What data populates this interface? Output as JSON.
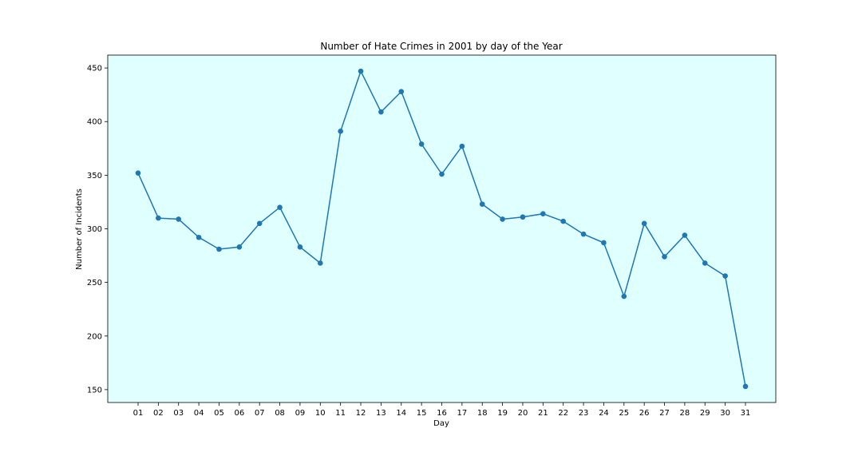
{
  "chart_data": {
    "type": "line",
    "title": "Number of Hate Crimes in 2001 by day of the Year",
    "xlabel": "Day",
    "ylabel": "Number of Incidents",
    "x": [
      "01",
      "02",
      "03",
      "04",
      "05",
      "06",
      "07",
      "08",
      "09",
      "10",
      "11",
      "12",
      "13",
      "14",
      "15",
      "16",
      "17",
      "18",
      "19",
      "20",
      "21",
      "22",
      "23",
      "24",
      "25",
      "26",
      "27",
      "28",
      "29",
      "30",
      "31"
    ],
    "series": [
      {
        "values": [
          352,
          310,
          309,
          292,
          281,
          283,
          305,
          320,
          283,
          268,
          391,
          447,
          409,
          428,
          379,
          351,
          377,
          323,
          309,
          311,
          314,
          307,
          295,
          287,
          237,
          305,
          274,
          294,
          268,
          256,
          153
        ]
      }
    ],
    "ylim": [
      138,
      462
    ],
    "yticks": [
      150,
      200,
      250,
      300,
      350,
      400,
      450
    ],
    "grid": false,
    "legend": "none",
    "colors": {
      "line": "#1f77b4",
      "plot_background": "#e0ffff",
      "axis": "#000000"
    }
  }
}
